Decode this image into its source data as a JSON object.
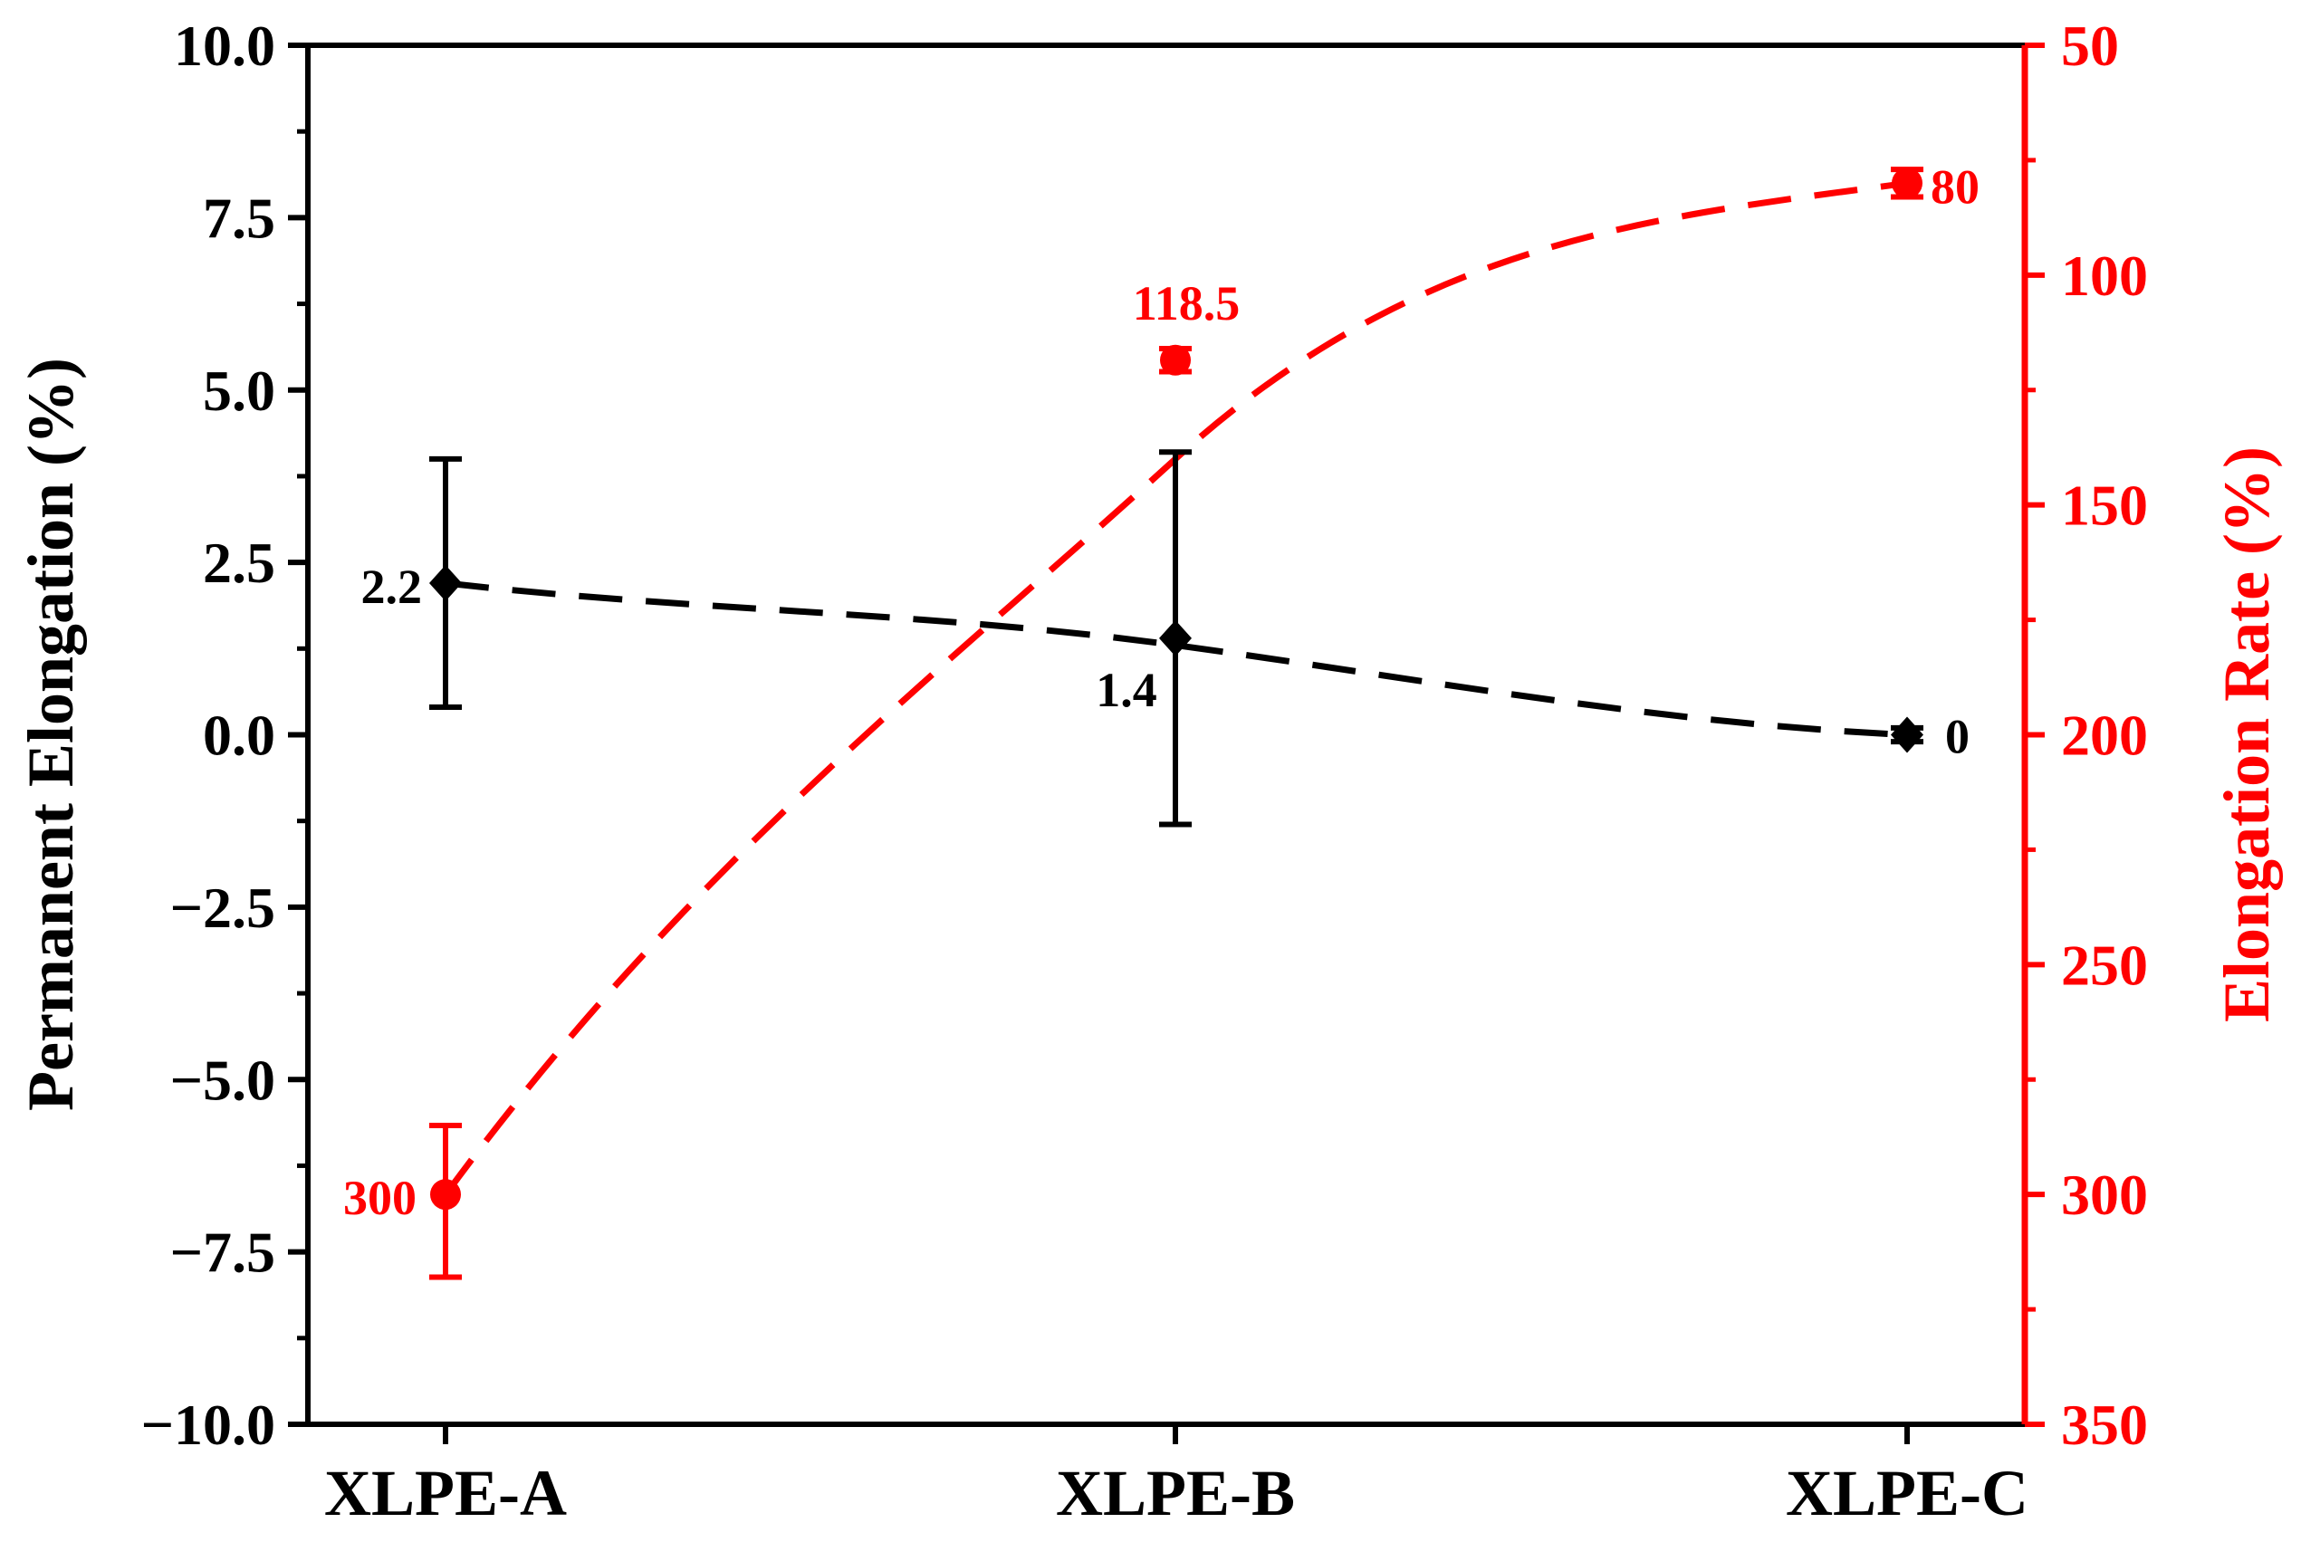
{
  "chart_data": {
    "type": "line",
    "categories": [
      "XLPE-A",
      "XLPE-B",
      "XLPE-C"
    ],
    "y_left": {
      "label": "Permanent Elongation (%)",
      "ylim": [
        -10.0,
        10.0
      ],
      "ticks": [
        "10.0",
        "7.5",
        "5.0",
        "2.5",
        "0.0",
        "−2.5",
        "−5.0",
        "−7.5",
        "−10.0"
      ],
      "tick_values": [
        10.0,
        7.5,
        5.0,
        2.5,
        0.0,
        -2.5,
        -5.0,
        -7.5,
        -10.0
      ],
      "color": "#000000"
    },
    "y_right": {
      "label": "Elongation Rate (%)",
      "ylim": [
        50,
        350
      ],
      "inverted": true,
      "ticks": [
        "50",
        "100",
        "150",
        "200",
        "250",
        "300",
        "350"
      ],
      "tick_values": [
        50,
        100,
        150,
        200,
        250,
        300,
        350
      ],
      "color": "#ff0000"
    },
    "series": [
      {
        "axis": "left",
        "color": "#000000",
        "marker": "diamond",
        "values": [
          2.2,
          1.4,
          0.0
        ],
        "error_low": [
          0.4,
          -1.3,
          -0.1
        ],
        "error_high": [
          4.0,
          4.1,
          0.1
        ],
        "data_labels": [
          "2.2",
          "1.4",
          "0"
        ],
        "fit_line": [
          2.2,
          1.3,
          0.0
        ]
      },
      {
        "axis": "right",
        "color": "#ff0000",
        "marker": "circle",
        "values": [
          300,
          118.5,
          80
        ],
        "error_low": [
          285,
          116,
          77
        ],
        "error_high": [
          318,
          121,
          83
        ],
        "data_labels": [
          "300",
          "118.5",
          "80"
        ],
        "fit_line": [
          300,
          140,
          80
        ]
      }
    ],
    "grid": false,
    "legend": "none"
  }
}
